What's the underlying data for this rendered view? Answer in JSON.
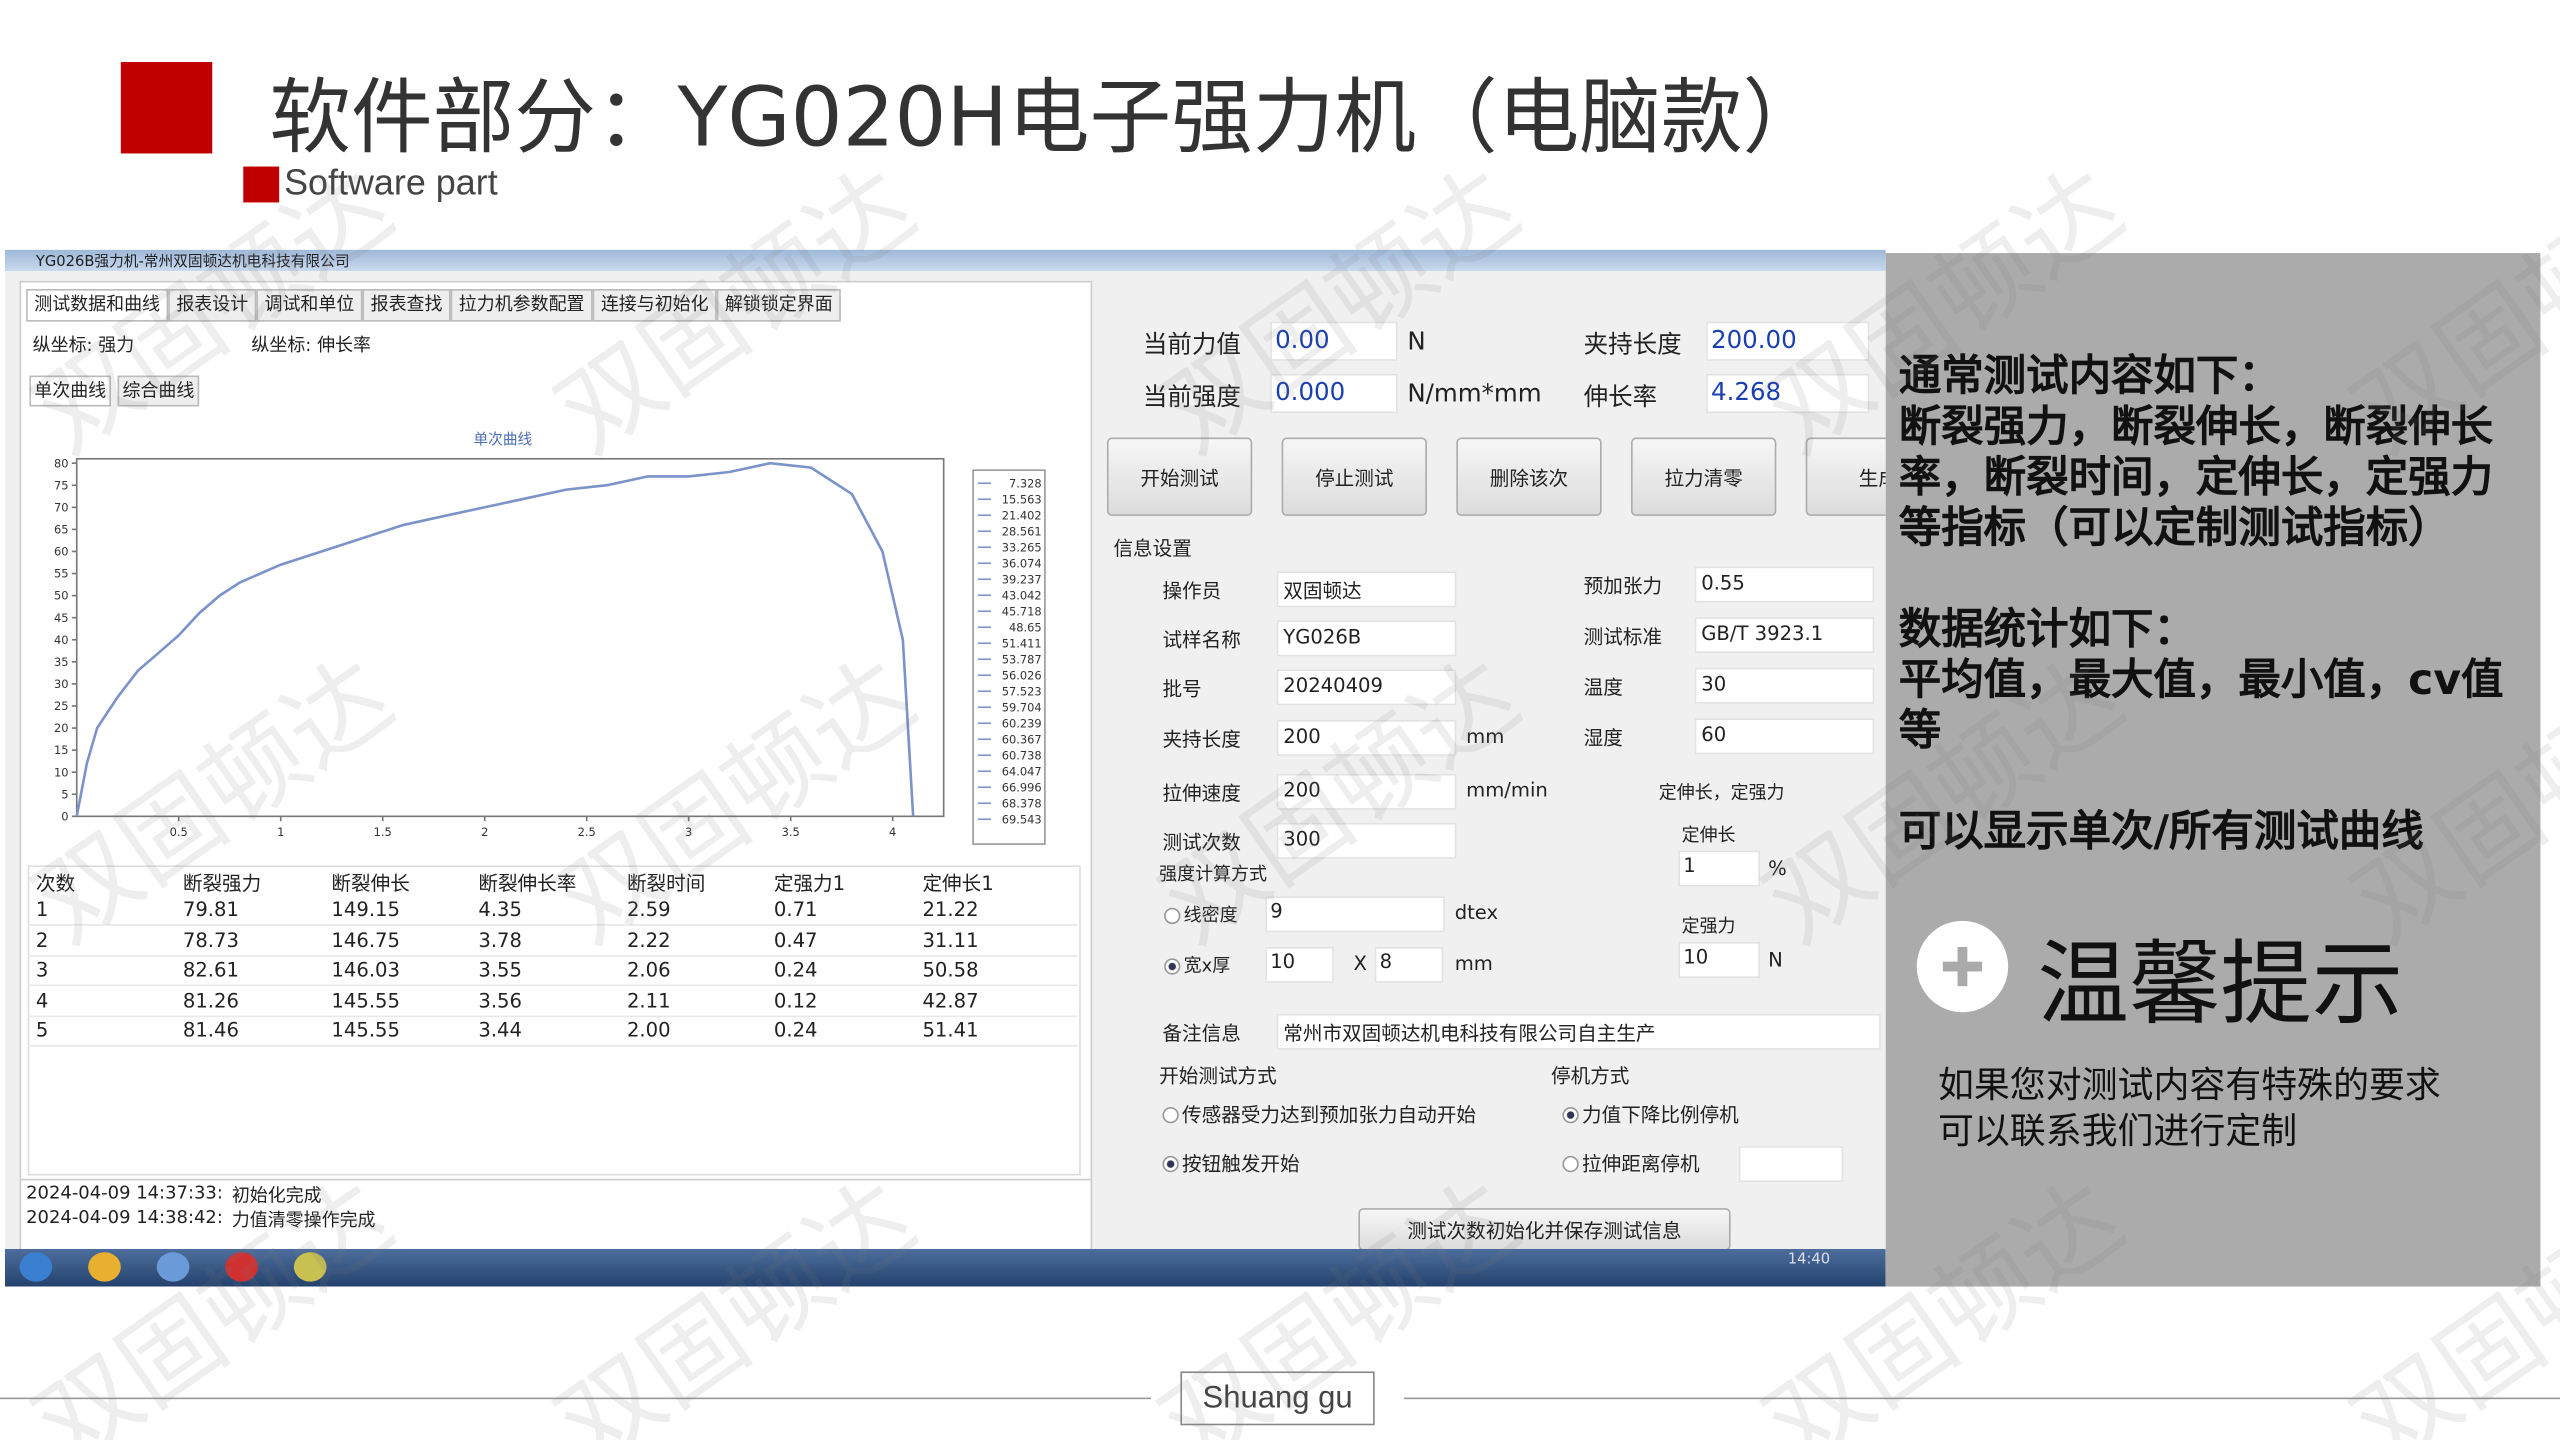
{
  "header": {
    "title": "软件部分：YG020H电子强力机（电脑款）",
    "subtitle": "Software part"
  },
  "watermark": "双固顿达",
  "window": {
    "title": "YG026B强力机-常州双固顿达机电科技有限公司",
    "tabs": [
      "测试数据和曲线",
      "报表设计",
      "调试和单位",
      "报表查找",
      "拉力机参数配置",
      "连接与初始化",
      "解锁锁定界面"
    ],
    "y_axis_label": "纵坐标: 强力",
    "x_axis_label": "纵坐标: 伸长率",
    "curve_tabs": [
      "单次曲线",
      "综合曲线"
    ],
    "chart": {
      "type": "line",
      "title": "单次曲线",
      "color": "#7b93c9",
      "x": [
        0,
        0.05,
        0.1,
        0.2,
        0.3,
        0.4,
        0.5,
        0.6,
        0.7,
        0.8,
        1.0,
        1.2,
        1.4,
        1.6,
        1.8,
        2.0,
        2.2,
        2.4,
        2.6,
        2.8,
        3.0,
        3.2,
        3.4,
        3.6,
        3.8,
        3.95,
        4.05,
        4.1
      ],
      "values": [
        0,
        12,
        20,
        27,
        33,
        37,
        41,
        46,
        50,
        53,
        57,
        60,
        63,
        66,
        68,
        70,
        72,
        74,
        75,
        77,
        77,
        78,
        80,
        79,
        73,
        60,
        40,
        0
      ],
      "xlim": [
        0,
        4.25
      ],
      "ylim": [
        0,
        81
      ],
      "xticks": [
        0.5,
        1,
        1.5,
        2,
        2.5,
        3,
        3.5,
        4
      ],
      "yticks": [
        0,
        5,
        10,
        15,
        20,
        25,
        30,
        35,
        40,
        45,
        50,
        55,
        60,
        65,
        70,
        75,
        80
      ],
      "legend_values": [
        7.328,
        15.563,
        21.402,
        28.561,
        33.265,
        36.074,
        39.237,
        43.042,
        45.718,
        48.65,
        51.411,
        53.787,
        56.026,
        57.523,
        59.704,
        60.239,
        60.367,
        60.738,
        64.047,
        66.996,
        68.378,
        69.543
      ]
    },
    "table": {
      "header": [
        "次数",
        "断裂强力",
        "断裂伸长",
        "断裂伸长率",
        "断裂时间",
        "定强力1",
        "定伸长1"
      ],
      "rows": [
        [
          "1",
          "79.81",
          "149.15",
          "4.35",
          "2.59",
          "0.71",
          "21.22"
        ],
        [
          "2",
          "78.73",
          "146.75",
          "3.78",
          "2.22",
          "0.47",
          "31.11"
        ],
        [
          "3",
          "82.61",
          "146.03",
          "3.55",
          "2.06",
          "0.24",
          "50.58"
        ],
        [
          "4",
          "81.26",
          "145.55",
          "3.56",
          "2.11",
          "0.12",
          "42.87"
        ],
        [
          "5",
          "81.46",
          "145.55",
          "3.44",
          "2.00",
          "0.24",
          "51.41"
        ]
      ]
    },
    "log": [
      [
        "2024-04-09 14:37:33:",
        "初始化完成"
      ],
      [
        "2024-04-09 14:38:42:",
        "力值清零操作完成"
      ]
    ],
    "readouts": [
      {
        "label": "当前力值",
        "value": "0.00",
        "unit": "N"
      },
      {
        "label": "当前强度",
        "value": "0.000",
        "unit": "N/mm*mm"
      },
      {
        "label": "夹持长度",
        "value": "200.00"
      },
      {
        "label": "伸长率",
        "value": "4.268"
      }
    ],
    "buttons": [
      "开始测试",
      "停止测试",
      "删除该次",
      "拉力清零",
      "生成"
    ],
    "info_title": "信息设置",
    "fields": [
      {
        "label": "操作员",
        "value": "双固顿达"
      },
      {
        "label": "试样名称",
        "value": "YG026B"
      },
      {
        "label": "批号",
        "value": "20240409"
      },
      {
        "label": "夹持长度",
        "value": "200",
        "unit": "mm"
      },
      {
        "label": "拉伸速度",
        "value": "200",
        "unit": "mm/min"
      },
      {
        "label": "测试次数",
        "value": "300"
      },
      {
        "label": "预加张力",
        "value": "0.55"
      },
      {
        "label": "测试标准",
        "value": "GB/T 3923.1"
      },
      {
        "label": "温度",
        "value": "30"
      },
      {
        "label": "湿度",
        "value": "60"
      }
    ],
    "fixed_title": "定伸长，定强力",
    "fixed": [
      {
        "label": "定伸长",
        "value": "1",
        "unit": "%"
      },
      {
        "label": "定强力",
        "value": "10",
        "unit": "N"
      }
    ],
    "strength_title": "强度计算方式",
    "linear_density": {
      "label": "线密度",
      "value": "9",
      "unit": "dtex"
    },
    "width_thickness": {
      "label": "宽x厚",
      "width": "10",
      "sep": "X",
      "thickness": "8",
      "unit": "mm"
    },
    "remark": {
      "label": "备注信息",
      "value": "常州市双固顿达机电科技有限公司自主生产"
    },
    "start_mode": {
      "title": "开始测试方式",
      "options": [
        "传感器受力达到预加张力自动开始",
        "按钮触发开始"
      ]
    },
    "stop_mode": {
      "title": "停机方式",
      "options": [
        "力值下降比例停机",
        "拉伸距离停机"
      ]
    },
    "save_button": "测试次数初始化并保存测试信息",
    "clock": "14:40"
  },
  "side": {
    "intro_title": "通常测试内容如下：",
    "intro_body": "断裂强力，断裂伸长，断裂伸长率，断裂时间，定伸长，定强力等指标（可以定制测试指标）",
    "stats_title": "数据统计如下：",
    "stats_body": "平均值，最大值，最小值，cv值等",
    "curves": "可以显示单次/所有测试曲线",
    "tip_title": "温馨提示",
    "tip_lines": [
      "如果您对测试内容有特殊的要求",
      "可以联系我们进行定制"
    ]
  },
  "footer": "Shuang gu"
}
